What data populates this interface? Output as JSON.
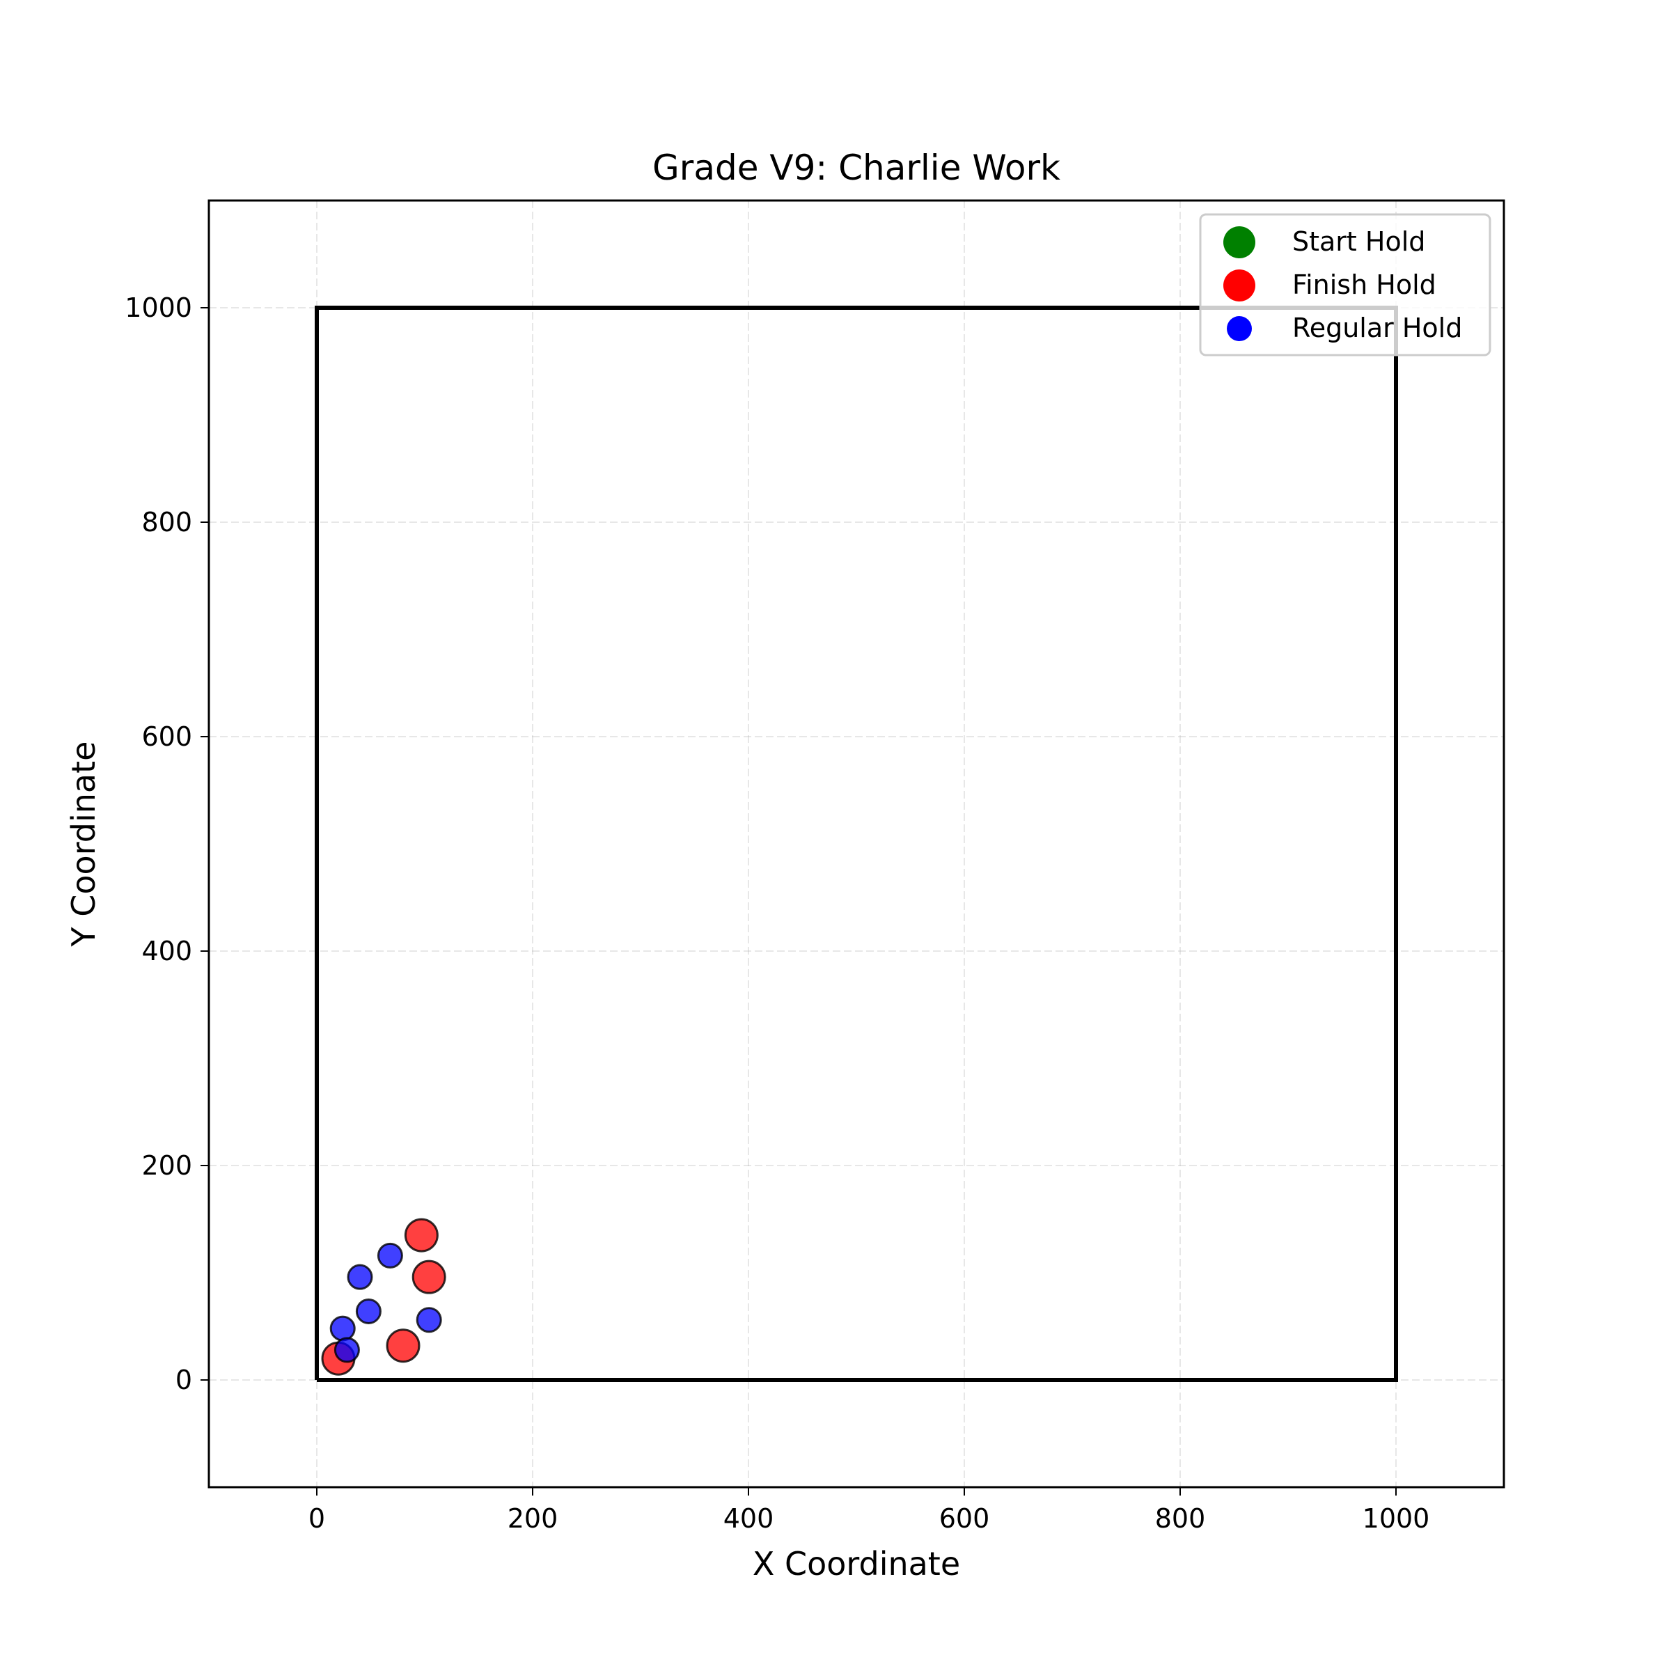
{
  "chart_data": {
    "type": "scatter",
    "title": "Grade V9: Charlie Work",
    "xlabel": "X Coordinate",
    "ylabel": "Y Coordinate",
    "xlim": [
      -100,
      1100
    ],
    "ylim": [
      -100,
      1100
    ],
    "xticks": [
      0,
      200,
      400,
      600,
      800,
      1000
    ],
    "yticks": [
      0,
      200,
      400,
      600,
      800,
      1000
    ],
    "grid": true,
    "legend_position": "top-right",
    "wall_outline": [
      [
        0,
        0
      ],
      [
        1000,
        0
      ],
      [
        1000,
        1000
      ],
      [
        0,
        1000
      ],
      [
        0,
        0
      ]
    ],
    "series": [
      {
        "name": "Start Hold",
        "color": "#008000",
        "points": []
      },
      {
        "name": "Finish Hold",
        "color": "#ff0000",
        "points": [
          [
            20,
            20
          ],
          [
            80,
            32
          ],
          [
            104,
            96
          ],
          [
            97,
            135
          ]
        ]
      },
      {
        "name": "Regular Hold",
        "color": "#0000ff",
        "points": [
          [
            24,
            48
          ],
          [
            28,
            28
          ],
          [
            40,
            96
          ],
          [
            48,
            64
          ],
          [
            68,
            116
          ],
          [
            104,
            56
          ]
        ]
      }
    ]
  }
}
